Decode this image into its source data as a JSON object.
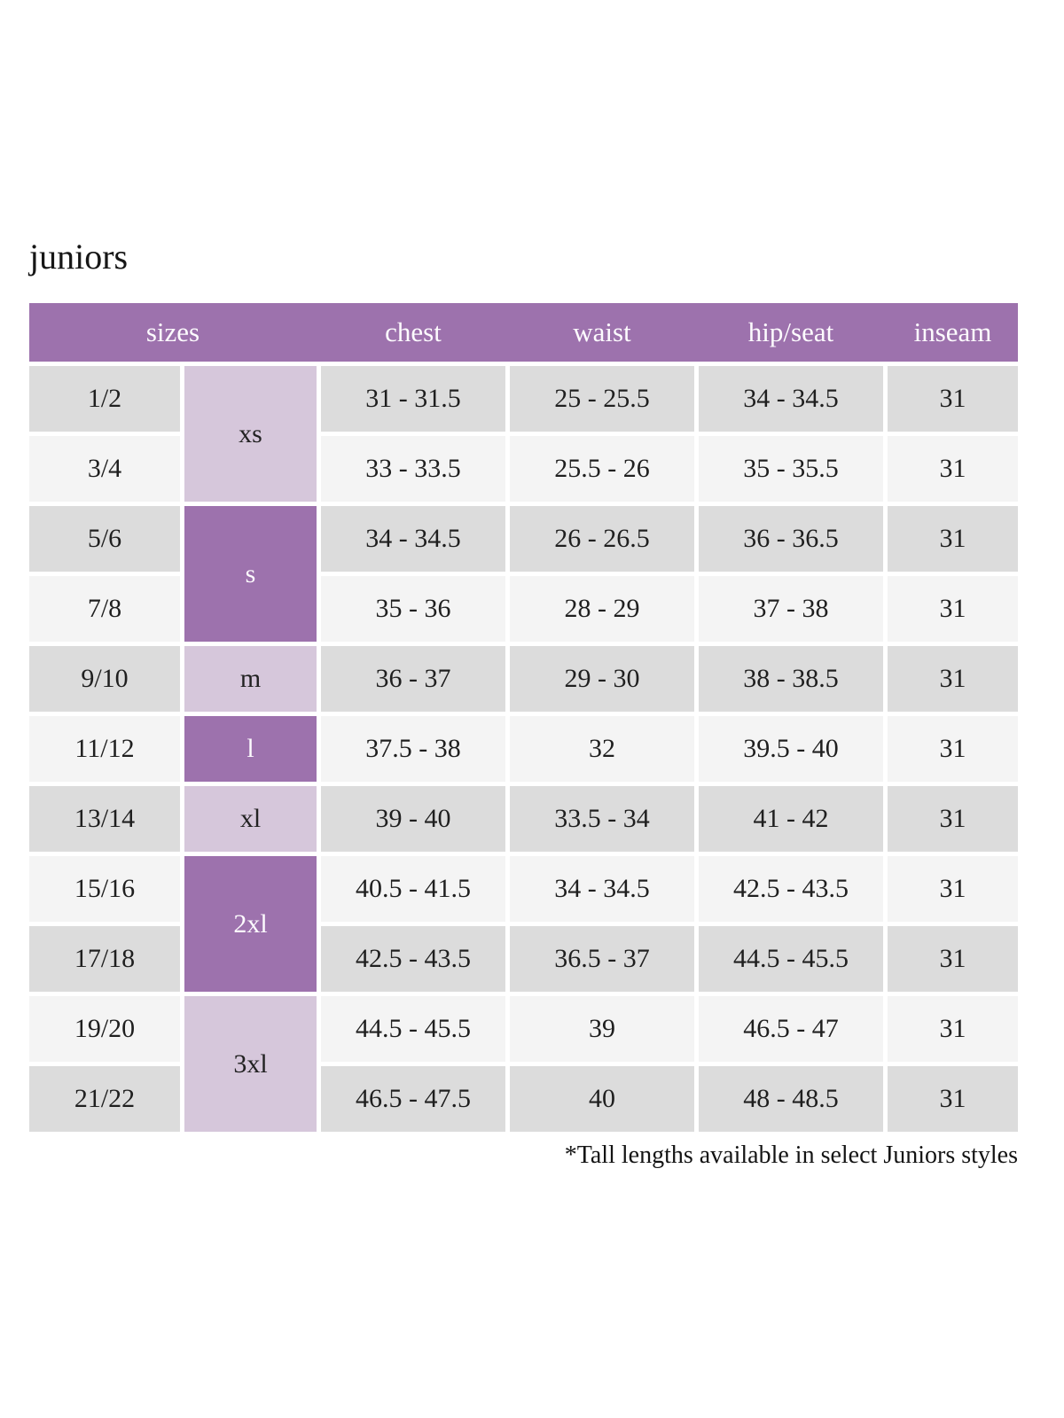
{
  "title": "juniors",
  "footnote": "*Tall lengths available in select Juniors styles",
  "colors": {
    "header_bg": "#9d72ad",
    "size_group_light_bg": "#d6c7db",
    "size_group_dark_bg": "#9d72ad",
    "row_dark_bg": "#dcdcdc",
    "row_light_bg": "#f4f4f4",
    "header_text": "#ffffff",
    "body_text": "#1f1f1f"
  },
  "table": {
    "headers": {
      "sizes": "sizes",
      "chest": "chest",
      "waist": "waist",
      "hip_seat": "hip/seat",
      "inseam": "inseam"
    },
    "size_groups": [
      {
        "label": "xs",
        "spans_rows": 2,
        "style": "light"
      },
      {
        "label": "s",
        "spans_rows": 2,
        "style": "dark"
      },
      {
        "label": "m",
        "spans_rows": 1,
        "style": "light"
      },
      {
        "label": "l",
        "spans_rows": 1,
        "style": "dark"
      },
      {
        "label": "xl",
        "spans_rows": 1,
        "style": "light"
      },
      {
        "label": "2xl",
        "spans_rows": 2,
        "style": "dark"
      },
      {
        "label": "3xl",
        "spans_rows": 2,
        "style": "light"
      }
    ],
    "rows": [
      {
        "size": "1/2",
        "chest": "31 - 31.5",
        "waist": "25 - 25.5",
        "hip_seat": "34 - 34.5",
        "inseam": "31"
      },
      {
        "size": "3/4",
        "chest": "33 - 33.5",
        "waist": "25.5 - 26",
        "hip_seat": "35 - 35.5",
        "inseam": "31"
      },
      {
        "size": "5/6",
        "chest": "34 - 34.5",
        "waist": "26 - 26.5",
        "hip_seat": "36 - 36.5",
        "inseam": "31"
      },
      {
        "size": "7/8",
        "chest": "35 - 36",
        "waist": "28 - 29",
        "hip_seat": "37 - 38",
        "inseam": "31"
      },
      {
        "size": "9/10",
        "chest": "36 - 37",
        "waist": "29 - 30",
        "hip_seat": "38 - 38.5",
        "inseam": "31"
      },
      {
        "size": "11/12",
        "chest": "37.5 - 38",
        "waist": "32",
        "hip_seat": "39.5 - 40",
        "inseam": "31"
      },
      {
        "size": "13/14",
        "chest": "39 - 40",
        "waist": "33.5 - 34",
        "hip_seat": "41 - 42",
        "inseam": "31"
      },
      {
        "size": "15/16",
        "chest": "40.5 - 41.5",
        "waist": "34 - 34.5",
        "hip_seat": "42.5 - 43.5",
        "inseam": "31"
      },
      {
        "size": "17/18",
        "chest": "42.5 - 43.5",
        "waist": "36.5 - 37",
        "hip_seat": "44.5 - 45.5",
        "inseam": "31"
      },
      {
        "size": "19/20",
        "chest": "44.5 - 45.5",
        "waist": "39",
        "hip_seat": "46.5 - 47",
        "inseam": "31"
      },
      {
        "size": "21/22",
        "chest": "46.5 - 47.5",
        "waist": "40",
        "hip_seat": "48 - 48.5",
        "inseam": "31"
      }
    ]
  }
}
